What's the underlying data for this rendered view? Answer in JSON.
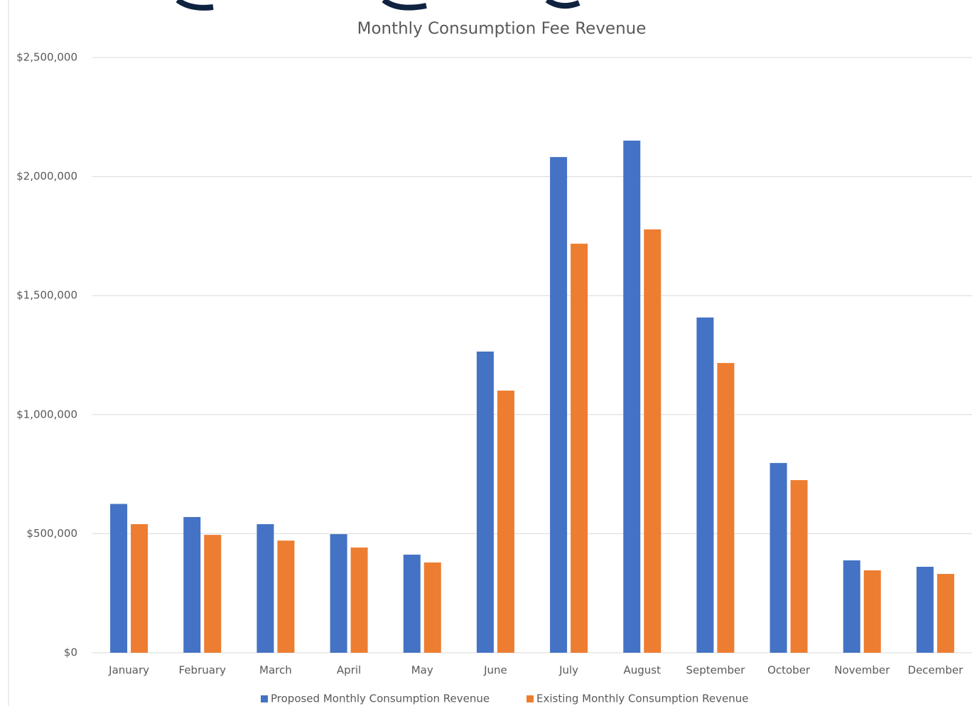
{
  "chart_data": {
    "type": "bar",
    "title": "Monthly Consumption Fee Revenue",
    "categories": [
      "January",
      "February",
      "March",
      "April",
      "May",
      "June",
      "July",
      "August",
      "September",
      "October",
      "November",
      "December"
    ],
    "series": [
      {
        "name": "Proposed Monthly Consumption Revenue",
        "color": "#4472c4",
        "values": [
          625000,
          570000,
          540000,
          498000,
          412000,
          1265000,
          2082000,
          2151000,
          1408000,
          797000,
          388000,
          361000
        ]
      },
      {
        "name": "Existing Monthly Consumption Revenue",
        "color": "#ed7d31",
        "values": [
          540000,
          495000,
          471000,
          442000,
          379000,
          1101000,
          1718000,
          1778000,
          1217000,
          725000,
          346000,
          331000
        ]
      }
    ],
    "ylim": [
      0,
      2500000
    ],
    "yticks": [
      {
        "value": 0,
        "label": "$0"
      },
      {
        "value": 500000,
        "label": "$500,000"
      },
      {
        "value": 1000000,
        "label": "$1,000,000"
      },
      {
        "value": 1500000,
        "label": "$1,500,000"
      },
      {
        "value": 2000000,
        "label": "$2,000,000"
      },
      {
        "value": 2500000,
        "label": "$2,500,000"
      }
    ],
    "grid": true,
    "legend": "bottom"
  }
}
